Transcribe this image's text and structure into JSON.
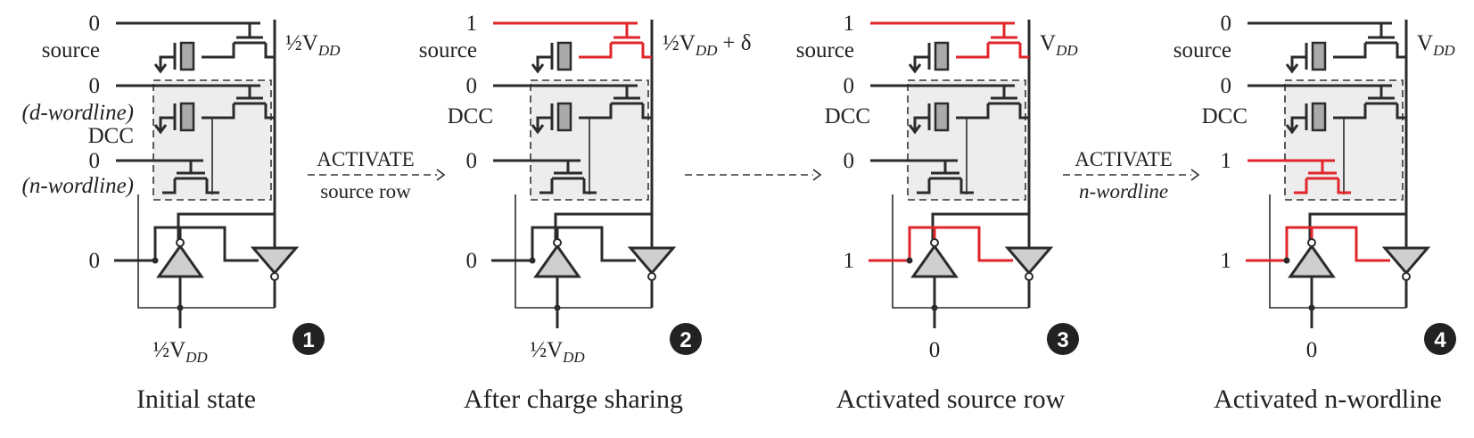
{
  "panels": [
    {
      "state_label": "Initial state",
      "badge": "1",
      "source_value": "0",
      "source_label": "source",
      "bitline_label": "½V",
      "bitline_sub": "DD",
      "bitline_suffix": "",
      "d_wordline_value": "0",
      "d_wordline_label": "(d-wordline)",
      "dcc_label": "DCC",
      "n_wordline_value": "0",
      "n_wordline_label": "(n-wordline)",
      "amp_input_value": "0",
      "bottom_label": "½V",
      "bottom_sub": "DD"
    },
    {
      "state_label": "After charge sharing",
      "badge": "2",
      "source_value": "1",
      "source_label": "source",
      "bitline_label": "½V",
      "bitline_sub": "DD",
      "bitline_suffix": "+ δ",
      "d_wordline_value": "0",
      "dcc_label": "DCC",
      "n_wordline_value": "0",
      "amp_input_value": "0",
      "bottom_label": "½V",
      "bottom_sub": "DD"
    },
    {
      "state_label": "Activated source row",
      "badge": "3",
      "source_value": "1",
      "source_label": "source",
      "bitline_label": "V",
      "bitline_sub": "DD",
      "bitline_suffix": "",
      "d_wordline_value": "0",
      "dcc_label": "DCC",
      "n_wordline_value": "0",
      "amp_input_value": "1",
      "bottom_label": "0",
      "bottom_sub": ""
    },
    {
      "state_label": "Activated n-wordline",
      "badge": "4",
      "source_value": "0",
      "source_label": "source",
      "bitline_label": "V",
      "bitline_sub": "DD",
      "bitline_suffix": "",
      "d_wordline_value": "0",
      "dcc_label": "DCC",
      "n_wordline_value": "1",
      "amp_input_value": "1",
      "bottom_label": "0",
      "bottom_sub": ""
    }
  ],
  "transitions": [
    {
      "top": "ACTIVATE",
      "bottom": "source row"
    },
    {
      "top": "",
      "bottom": ""
    },
    {
      "top": "ACTIVATE",
      "bottom": "n-wordline"
    }
  ],
  "colors": {
    "highlight": "#e0262b",
    "ink": "#2b2b2b",
    "dcc_fill": "#ededed"
  }
}
